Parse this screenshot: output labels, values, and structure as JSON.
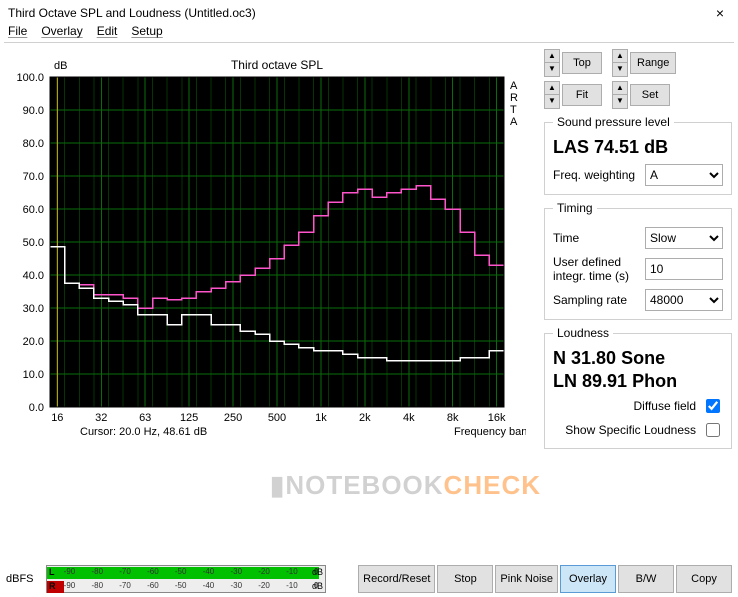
{
  "window": {
    "title": "Third Octave SPL and Loudness (Untitled.oc3)"
  },
  "menu": {
    "file": "File",
    "overlay": "Overlay",
    "edit": "Edit",
    "setup": "Setup"
  },
  "chart": {
    "title": "Third octave SPL",
    "ylabel": "dB",
    "xlabel": "Frequency band (Hz)",
    "cursor_label": "Cursor:   20.0 Hz, 48.61 dB",
    "arta_label": "A\nR\nT\nA",
    "background_color": "#000000",
    "grid_color": "#0a6b0a",
    "ylim": [
      0,
      100
    ],
    "ytick_step": 10,
    "x_ticks": [
      "16",
      "32",
      "63",
      "125",
      "250",
      "500",
      "1k",
      "2k",
      "4k",
      "8k",
      "16k"
    ],
    "freq_centers_hz": [
      16,
      20,
      25,
      31.5,
      40,
      50,
      63,
      80,
      100,
      125,
      160,
      200,
      250,
      315,
      400,
      500,
      630,
      800,
      1000,
      1250,
      1600,
      2000,
      2500,
      3150,
      4000,
      5000,
      6300,
      8000,
      10000,
      12500,
      16000
    ],
    "series": [
      {
        "name": "pink",
        "color": "#ff55cc",
        "values": [
          48.5,
          37.5,
          37,
          34,
          34,
          33,
          30,
          33,
          32.5,
          33,
          35,
          36,
          38,
          40,
          42,
          45,
          49,
          53,
          58,
          62,
          65,
          66,
          63.5,
          65,
          66,
          67,
          63,
          60,
          53,
          46,
          43
        ]
      },
      {
        "name": "white",
        "color": "#ffffff",
        "values": [
          48.5,
          37.5,
          36,
          33,
          32,
          31,
          28,
          28,
          25,
          28,
          28,
          25,
          25,
          23,
          22,
          20,
          19,
          18,
          17,
          17,
          16,
          15,
          15,
          14,
          14,
          14,
          14,
          14,
          15,
          15,
          17
        ]
      }
    ]
  },
  "side": {
    "top_btn": "Top",
    "fit_btn": "Fit",
    "range_btn": "Range",
    "set_btn": "Set",
    "spl_legend": "Sound pressure level",
    "las_label": "LAS",
    "las_value": "74.51",
    "las_unit": "dB",
    "freq_weighting_label": "Freq. weighting",
    "freq_weighting_value": "A",
    "timing_legend": "Timing",
    "time_label": "Time",
    "time_value": "Slow",
    "integ_label": "User defined integr. time (s)",
    "integ_value": "10",
    "sampling_label": "Sampling rate",
    "sampling_value": "48000",
    "loudness_legend": "Loudness",
    "n_label": "N",
    "n_value": "31.80",
    "n_unit": "Sone",
    "ln_label": "LN",
    "ln_value": "89.91",
    "ln_unit": "Phon",
    "diffuse_label": "Diffuse field",
    "diffuse_checked": true,
    "show_specific_label": "Show Specific Loudness",
    "show_specific_checked": false
  },
  "meter": {
    "dbfs_label": "dBFS",
    "ticks": [
      "-90",
      "-80",
      "-70",
      "-60",
      "-50",
      "-40",
      "-30",
      "-20",
      "-10",
      "0"
    ],
    "db_label": "dB",
    "L_label": "L",
    "R_label": "R",
    "L_fill_pct": 98,
    "R_fill_pct": 6
  },
  "bottom_buttons": {
    "record": "Record/Reset",
    "stop": "Stop",
    "pink": "Pink Noise",
    "overlay": "Overlay",
    "bw": "B/W",
    "copy": "Copy"
  },
  "watermark": {
    "a": "NOTEBOOK",
    "b": "CHECK"
  }
}
